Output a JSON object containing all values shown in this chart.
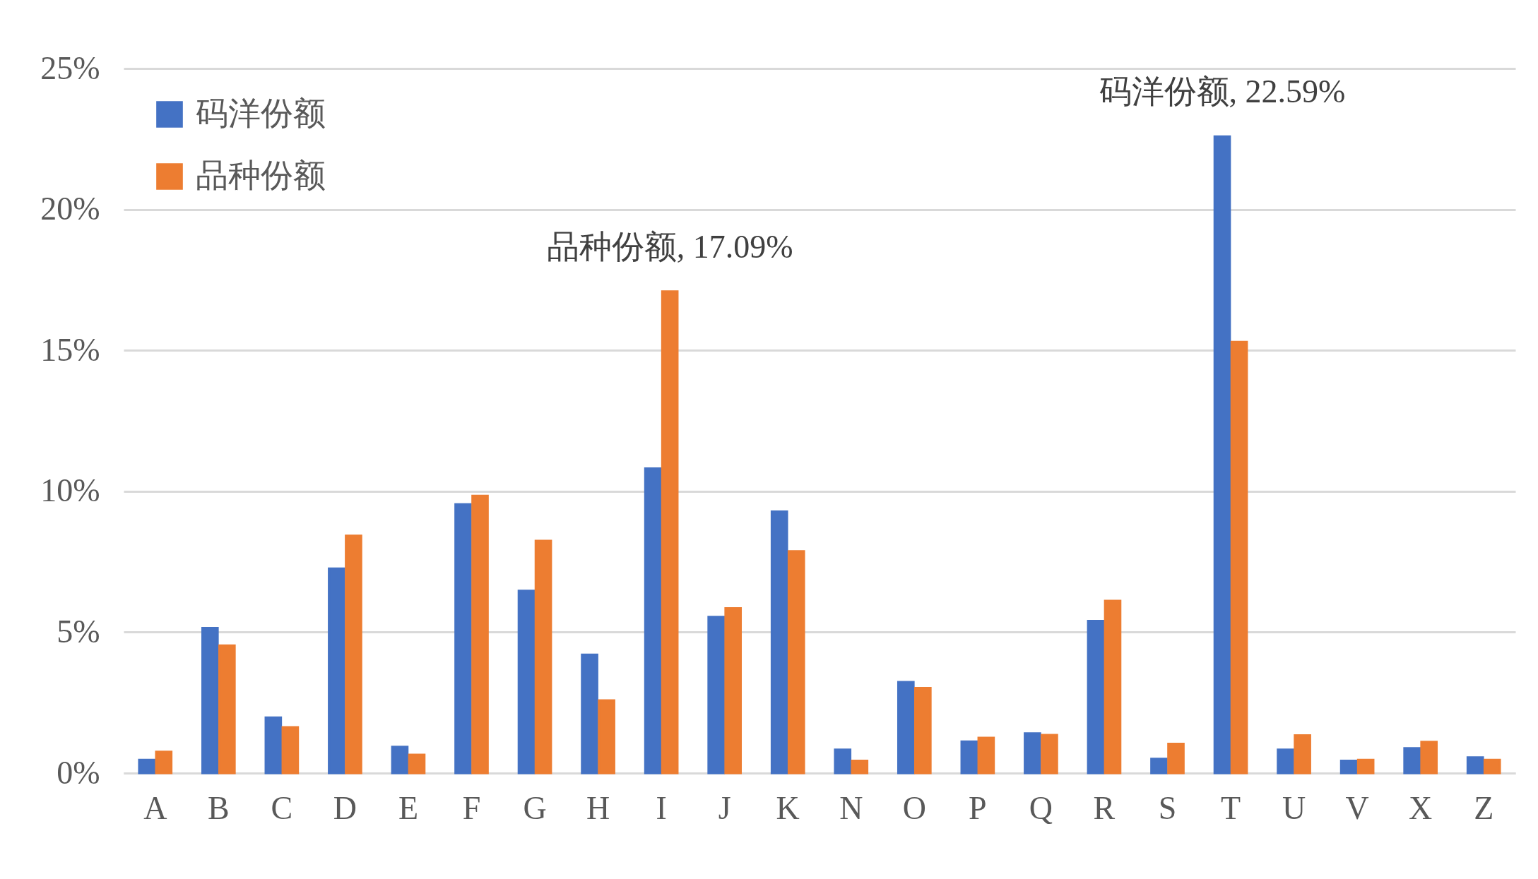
{
  "chart_data": {
    "type": "bar",
    "categories": [
      "A",
      "B",
      "C",
      "D",
      "E",
      "F",
      "G",
      "H",
      "I",
      "J",
      "K",
      "N",
      "O",
      "P",
      "Q",
      "R",
      "S",
      "T",
      "U",
      "V",
      "X",
      "Z"
    ],
    "series": [
      {
        "name": "码洋份额",
        "color": "#4472c4",
        "values": [
          0.47,
          5.15,
          1.97,
          7.26,
          0.93,
          9.54,
          6.47,
          4.2,
          10.81,
          5.54,
          9.28,
          0.83,
          3.23,
          1.12,
          1.41,
          5.4,
          0.51,
          22.59,
          0.83,
          0.44,
          0.88,
          0.56
        ]
      },
      {
        "name": "品种份额",
        "color": "#ed7d31",
        "values": [
          0.76,
          4.53,
          1.63,
          8.42,
          0.65,
          9.84,
          8.24,
          2.58,
          17.09,
          5.85,
          7.87,
          0.44,
          3.02,
          1.25,
          1.35,
          6.11,
          1.04,
          15.3,
          1.34,
          0.47,
          1.11,
          0.47
        ]
      }
    ],
    "ylim": [
      0,
      25
    ],
    "yticks": [
      {
        "value": 0,
        "label": "0%"
      },
      {
        "value": 5,
        "label": "5%"
      },
      {
        "value": 10,
        "label": "10%"
      },
      {
        "value": 15,
        "label": "15%"
      },
      {
        "value": 20,
        "label": "20%"
      },
      {
        "value": 25,
        "label": "25%"
      }
    ],
    "annotations": [
      {
        "text": "品种份额, 17.09%",
        "x": "I",
        "y": 17.09
      },
      {
        "text": "码洋份额, 22.59%",
        "x": "T",
        "y": 22.59
      }
    ],
    "grid": "y",
    "legend": "top left"
  }
}
